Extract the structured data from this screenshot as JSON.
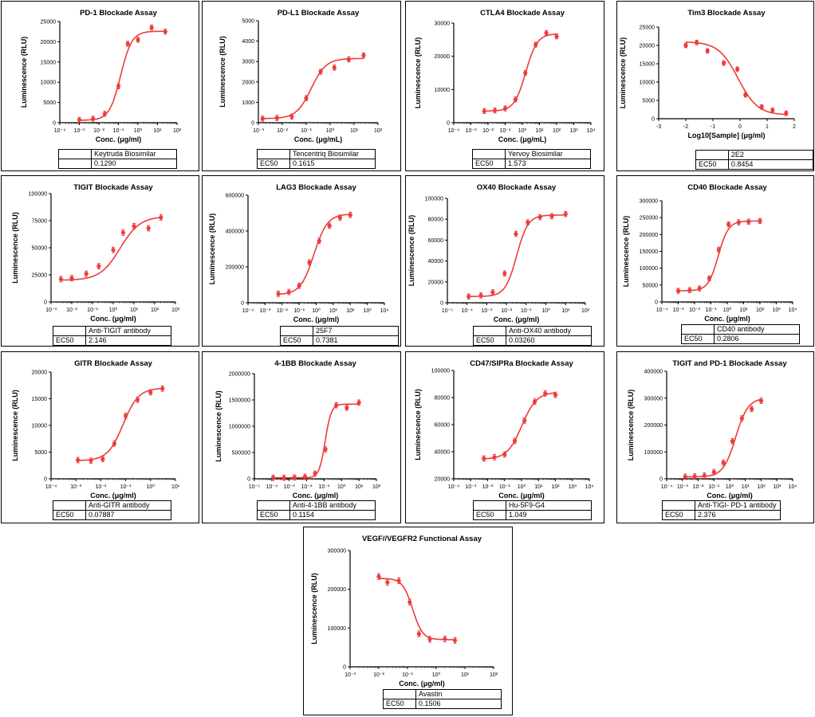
{
  "colors": {
    "series": "#ee3b3b",
    "axis": "#000000"
  },
  "chart_data": [
    {
      "type": "scatter",
      "title": "PD-1 Blockade Assay",
      "xlabel": "Conc. (μg/ml)",
      "ylabel": "Luminescence (RLU)",
      "xscale": "log",
      "xlim": [
        -4,
        2
      ],
      "ylim": [
        0,
        25000
      ],
      "yticks": [
        "0",
        "5000",
        "10000",
        "15000",
        "20000",
        "25000"
      ],
      "x": [
        0.001,
        0.005,
        0.02,
        0.1,
        0.3,
        1,
        5,
        25
      ],
      "y": [
        700,
        1000,
        2200,
        9000,
        19500,
        20500,
        23500,
        22500
      ],
      "curve": {
        "bottom": 600,
        "top": 22600,
        "ec50": 0.129,
        "hill": 1.5
      },
      "table": {
        "col_header": "Keytruda Biosimilar",
        "row_label": "",
        "value": "0.1290"
      }
    },
    {
      "type": "scatter",
      "title": "PD-L1 Blockade Assay",
      "xlabel": "Conc. (μg/mL)",
      "ylabel": "Luminescence (RLU)",
      "xscale": "log",
      "xlim": [
        -3,
        2
      ],
      "ylim": [
        0,
        5000
      ],
      "yticks": [
        "0",
        "1000",
        "2000",
        "3000",
        "4000",
        "5000"
      ],
      "x": [
        0.0015,
        0.006,
        0.025,
        0.1,
        0.4,
        1.5,
        6,
        25
      ],
      "y": [
        200,
        230,
        300,
        1200,
        2500,
        2700,
        3100,
        3300
      ],
      "curve": {
        "bottom": 200,
        "top": 3150,
        "ec50": 0.1615,
        "hill": 1.4
      },
      "table": {
        "col_header": "Tencentriq Biosimilar",
        "row_label": "EC50",
        "value": "0.1615"
      }
    },
    {
      "type": "scatter",
      "title": "CTLA4 Blockade Assay",
      "xlabel": "Conc. (μg/mL)",
      "ylabel": "Luminescence (RLU)",
      "xscale": "log",
      "xlim": [
        -4,
        4
      ],
      "ylim": [
        0,
        30000
      ],
      "yticks": [
        "0",
        "10000",
        "20000",
        "30000"
      ],
      "x": [
        0.006,
        0.025,
        0.1,
        0.4,
        1.5,
        6,
        25,
        100
      ],
      "y": [
        3500,
        3700,
        4300,
        7000,
        15000,
        23500,
        27000,
        26000
      ],
      "curve": {
        "bottom": 3500,
        "top": 26800,
        "ec50": 1.573,
        "hill": 1.3
      },
      "table": {
        "col_header": "Yervoy Biosimilar",
        "row_label": "EC50",
        "value": "1.573"
      }
    },
    {
      "type": "scatter",
      "title": "Tim3  Blockade Assay",
      "xlabel": "Log10[Sample] (μg/ml)",
      "ylabel": "Luminescence (RLU)",
      "xscale": "linear",
      "xlim": [
        -3,
        2
      ],
      "ylim": [
        0,
        25000
      ],
      "xticks": [
        "-3",
        "-2",
        "-1",
        "0",
        "1",
        "2"
      ],
      "yticks": [
        "0",
        "5000",
        "10000",
        "15000",
        "20000",
        "25000"
      ],
      "x": [
        -2,
        -1.6,
        -1.2,
        -0.6,
        -0.1,
        0.2,
        0.8,
        1.2,
        1.7
      ],
      "y": [
        20000,
        20800,
        18500,
        15200,
        13500,
        6500,
        3200,
        2300,
        1500
      ],
      "curve": {
        "bottom": 1000,
        "top": 21000,
        "ec50": 0.8454,
        "hill": 1.2,
        "decreasing": true
      },
      "table": {
        "col_header": "2E2",
        "row_label": "EC50",
        "value": "0.8454"
      }
    },
    {
      "type": "scatter",
      "title": "TIGIT Blockade Assay",
      "xlabel": "Conc. (μg/ml)",
      "ylabel": "Luminescence (RLU)",
      "xscale": "log",
      "xlim": [
        -3,
        3
      ],
      "ylim": [
        0,
        100000
      ],
      "yticks": [
        "0",
        "25000",
        "50000",
        "75000",
        "100000"
      ],
      "x": [
        0.003,
        0.01,
        0.05,
        0.2,
        1,
        3,
        10,
        50,
        200
      ],
      "y": [
        21000,
        22000,
        26000,
        33000,
        48000,
        64000,
        70000,
        68000,
        78000
      ],
      "curve": {
        "bottom": 20000,
        "top": 79000,
        "ec50": 2.146,
        "hill": 0.9
      },
      "table": {
        "col_header": "Anti-TIGIT antibody",
        "row_label": "EC50",
        "value": "2.146"
      }
    },
    {
      "type": "scatter",
      "title": "LAG3 Blockade Assay",
      "xlabel": "Conc. (μg/ml)",
      "ylabel": "Luminescence (RLU)",
      "xscale": "log",
      "xlim": [
        -4,
        4
      ],
      "ylim": [
        0,
        600000
      ],
      "yticks": [
        "0",
        "200000",
        "400000",
        "600000"
      ],
      "x": [
        0.006,
        0.025,
        0.1,
        0.4,
        1.5,
        6,
        25,
        100
      ],
      "y": [
        50000,
        60000,
        95000,
        225000,
        345000,
        430000,
        475000,
        490000
      ],
      "curve": {
        "bottom": 45000,
        "top": 495000,
        "ec50": 0.7381,
        "hill": 1.1
      },
      "table": {
        "col_header": "25F7",
        "row_label": "EC50",
        "value": "0.7381"
      }
    },
    {
      "type": "scatter",
      "title": "OX40 Blockade Assay",
      "xlabel": "Conc. (μg/ml)",
      "ylabel": "Luminescence (RLU)",
      "xscale": "log",
      "xlim": [
        -5,
        2
      ],
      "ylim": [
        0,
        100000
      ],
      "yticks": [
        "0",
        "20000",
        "40000",
        "60000",
        "80000",
        "100000"
      ],
      "x": [
        0.00012,
        0.0005,
        0.002,
        0.008,
        0.03,
        0.12,
        0.5,
        2,
        10
      ],
      "y": [
        6000,
        7000,
        10000,
        28000,
        66000,
        77000,
        82000,
        83000,
        85000
      ],
      "curve": {
        "bottom": 6000,
        "top": 84000,
        "ec50": 0.0326,
        "hill": 1.5
      },
      "table": {
        "col_header": "Anti-OX40 antibody",
        "row_label": "EC50",
        "value": "0.03260"
      }
    },
    {
      "type": "scatter",
      "title": "CD40 Blockade Assay",
      "xlabel": "Conc. (μg/ml)",
      "ylabel": "Luminescence (RLU)",
      "xscale": "log",
      "xlim": [
        -4,
        4
      ],
      "ylim": [
        0,
        300000
      ],
      "yticks": [
        "0",
        "50000",
        "100000",
        "150000",
        "200000",
        "250000",
        "300000"
      ],
      "x": [
        0.001,
        0.005,
        0.02,
        0.08,
        0.3,
        1.2,
        5,
        20,
        100
      ],
      "y": [
        33000,
        35000,
        40000,
        70000,
        155000,
        230000,
        236000,
        238000,
        240000
      ],
      "curve": {
        "bottom": 33000,
        "top": 240000,
        "ec50": 0.2806,
        "hill": 1.4
      },
      "table": {
        "col_header": "CD40 antibody",
        "row_label": "EC50",
        "value": "0.2806"
      }
    },
    {
      "type": "scatter",
      "title": "GITR Blockade Assay",
      "xlabel": "Conc. (μg/ml)",
      "ylabel": "Luminescence (RLU)",
      "xscale": "log",
      "xlim": [
        -4,
        1
      ],
      "ylim": [
        0,
        20000
      ],
      "yticks": [
        "0",
        "5000",
        "10000",
        "15000",
        "20000"
      ],
      "x": [
        0.0012,
        0.004,
        0.012,
        0.035,
        0.1,
        0.3,
        1,
        3
      ],
      "y": [
        3500,
        3400,
        3700,
        6600,
        11800,
        14800,
        16200,
        16900
      ],
      "curve": {
        "bottom": 3400,
        "top": 17000,
        "ec50": 0.07887,
        "hill": 1.4
      },
      "table": {
        "col_header": "Anti-GITR antibody",
        "row_label": "EC50",
        "value": "0.07887"
      }
    },
    {
      "type": "scatter",
      "title": "4-1BB Blockade Assay",
      "xlabel": "Conc. (μg/ml)",
      "ylabel": "Luminescence (RLU)",
      "xscale": "log",
      "xlim": [
        -5,
        2
      ],
      "ylim": [
        0,
        2000000
      ],
      "yticks": [
        "0",
        "500000",
        "1000000",
        "1500000",
        "2000000"
      ],
      "x": [
        0.00012,
        0.0005,
        0.002,
        0.008,
        0.03,
        0.12,
        0.5,
        2,
        10
      ],
      "y": [
        20000,
        20000,
        25000,
        40000,
        100000,
        560000,
        1400000,
        1350000,
        1450000
      ],
      "curve": {
        "bottom": 20000,
        "top": 1420000,
        "ec50": 0.1154,
        "hill": 2.5
      },
      "table": {
        "col_header": "Anti-4-1BB antibody",
        "row_label": "EC50",
        "value": "0.1154"
      }
    },
    {
      "type": "scatter",
      "title": "CD47/SIPRa Blockade Assay",
      "xlabel": "Conc. (μg/ml)",
      "ylabel": "Luminescence (RLU)",
      "xscale": "log",
      "xlim": [
        -4,
        4
      ],
      "ylim": [
        20000,
        100000
      ],
      "yticks": [
        "20000",
        "40000",
        "60000",
        "80000",
        "100000"
      ],
      "x": [
        0.006,
        0.025,
        0.1,
        0.4,
        1.5,
        6,
        25,
        100
      ],
      "y": [
        35000,
        36000,
        38000,
        48000,
        63000,
        77000,
        83000,
        82000
      ],
      "curve": {
        "bottom": 34500,
        "top": 84000,
        "ec50": 1.049,
        "hill": 1.0
      },
      "table": {
        "col_header": "Hu-5F9-G4",
        "row_label": "EC50",
        "value": "1.049"
      }
    },
    {
      "type": "scatter",
      "title": "TIGIT and PD-1 Blockade Assay",
      "xlabel": "Conc. (μg/ml)",
      "ylabel": "Luminescence (RLU)",
      "xscale": "log",
      "xlim": [
        -4,
        4
      ],
      "ylim": [
        0,
        400000
      ],
      "yticks": [
        "0",
        "100000",
        "200000",
        "300000",
        "400000"
      ],
      "x": [
        0.0015,
        0.006,
        0.025,
        0.1,
        0.4,
        1.5,
        6,
        25,
        100
      ],
      "y": [
        8000,
        9000,
        12000,
        25000,
        60000,
        140000,
        225000,
        260000,
        290000
      ],
      "curve": {
        "bottom": 7000,
        "top": 300000,
        "ec50": 2.376,
        "hill": 1.1
      },
      "table": {
        "col_header": "Anti-TIGI- PD-1 antibody",
        "row_label": "EC50",
        "value": "2.376"
      }
    },
    {
      "type": "scatter",
      "title": "VEGF//VEGFR2 Functional Assay",
      "xlabel": "Conc. (μg/ml)",
      "ylabel": "Luminescence (RLU)",
      "xscale": "log",
      "xlim": [
        -3,
        2
      ],
      "ylim": [
        0,
        300000
      ],
      "yticks": [
        "0",
        "100000",
        "200000",
        "300000"
      ],
      "x": [
        0.01,
        0.02,
        0.05,
        0.12,
        0.25,
        0.6,
        2,
        4.5
      ],
      "y": [
        233000,
        218000,
        222000,
        167000,
        85000,
        71000,
        72000,
        68000
      ],
      "curve": {
        "bottom": 70000,
        "top": 228000,
        "ec50": 0.1506,
        "hill": 2.5,
        "decreasing": true
      },
      "table": {
        "col_header": "Avastin",
        "row_label": "EC50",
        "value": "0.1506"
      }
    }
  ]
}
